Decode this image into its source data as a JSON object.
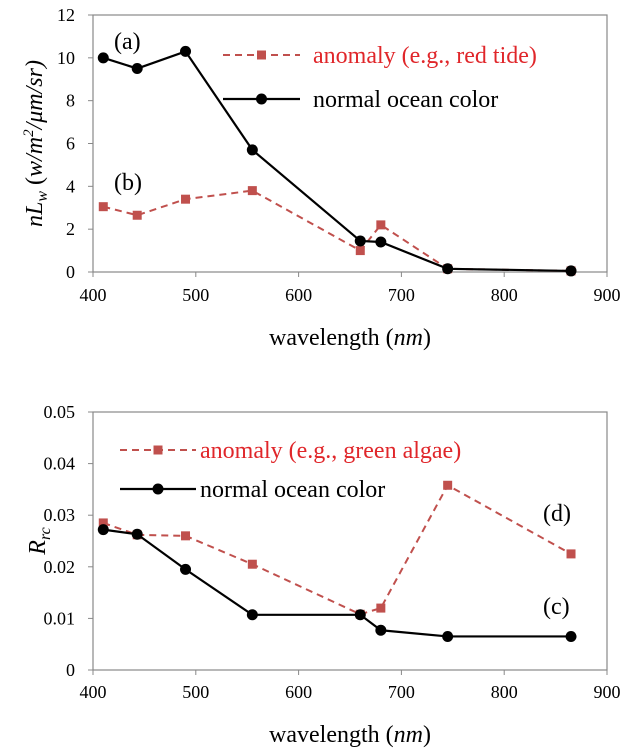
{
  "chart_data": [
    {
      "type": "line",
      "title": "",
      "xlabel": "wavelength (nm)",
      "xlabel_main": "wavelength (",
      "xlabel_unit": "nm",
      "xlabel_close": ")",
      "ylabel": "nL_w (w/m^2/μm/sr)",
      "ylabel_parts": {
        "n": "n",
        "L": "L",
        "sub": "w",
        "pre": " (",
        "unit": "w/m",
        "sup": "2",
        "post": "/μm/sr)"
      },
      "xlim": [
        400,
        900
      ],
      "ylim": [
        0,
        12
      ],
      "x_ticks": [
        "400",
        "500",
        "600",
        "700",
        "800",
        "900"
      ],
      "y_ticks": [
        "0",
        "2",
        "4",
        "6",
        "8",
        "10",
        "12"
      ],
      "legend_position": "top-right",
      "grid": false,
      "annotations": [
        {
          "text": "(a)",
          "x": 435,
          "y": 10.8
        },
        {
          "text": "(b)",
          "x": 435,
          "y": 4.0
        }
      ],
      "series": [
        {
          "name": "anomaly (e.g., red tide)",
          "style": "dashed-square",
          "color": "#c0504d",
          "x": [
            410,
            443,
            490,
            555,
            660,
            680,
            745,
            865
          ],
          "y": [
            3.05,
            2.65,
            3.4,
            3.8,
            1.0,
            2.2,
            0.15,
            0.05
          ]
        },
        {
          "name": "normal ocean color",
          "style": "solid-circle",
          "color": "#000000",
          "x": [
            410,
            443,
            490,
            555,
            660,
            680,
            745,
            865
          ],
          "y": [
            10.0,
            9.5,
            10.3,
            5.7,
            1.45,
            1.4,
            0.15,
            0.05
          ]
        }
      ]
    },
    {
      "type": "line",
      "title": "",
      "xlabel": "wavelength (nm)",
      "xlabel_main": "wavelength (",
      "xlabel_unit": "nm",
      "xlabel_close": ")",
      "ylabel": "R_rc",
      "ylabel_parts": {
        "R": "R",
        "sub": "rc"
      },
      "xlim": [
        400,
        900
      ],
      "ylim": [
        0,
        0.05
      ],
      "x_ticks": [
        "400",
        "500",
        "600",
        "700",
        "800",
        "900"
      ],
      "y_ticks": [
        "0",
        "0.01",
        "0.02",
        "0.03",
        "0.04",
        "0.05"
      ],
      "legend_position": "top-left",
      "grid": false,
      "annotations": [
        {
          "text": "(d)",
          "x": 820,
          "y": 0.0295
        },
        {
          "text": "(c)",
          "x": 820,
          "y": 0.0107
        }
      ],
      "series": [
        {
          "name": "anomaly (e.g., green algae)",
          "style": "dashed-square",
          "color": "#c0504d",
          "x": [
            410,
            443,
            490,
            555,
            660,
            680,
            745,
            865
          ],
          "y": [
            0.0285,
            0.0262,
            0.026,
            0.0205,
            0.0108,
            0.012,
            0.0358,
            0.0225
          ]
        },
        {
          "name": "normal ocean color",
          "style": "solid-circle",
          "color": "#000000",
          "x": [
            410,
            443,
            490,
            555,
            660,
            680,
            745,
            865
          ],
          "y": [
            0.0272,
            0.0263,
            0.0195,
            0.0107,
            0.0107,
            0.0077,
            0.0065,
            0.0065
          ]
        }
      ]
    }
  ]
}
